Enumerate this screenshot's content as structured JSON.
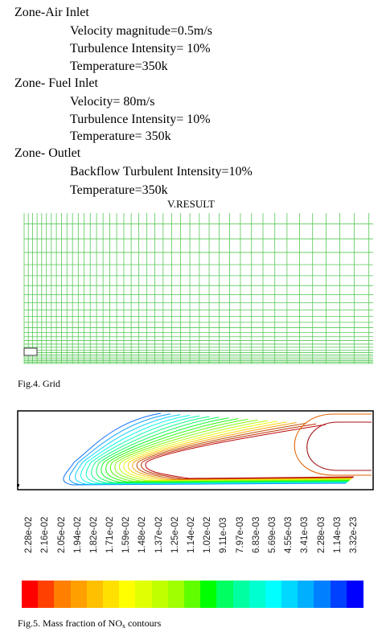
{
  "boundary_conditions": [
    {
      "zone": "Zone-Air Inlet",
      "params": [
        "Velocity magnitude=0.5m/s",
        "Turbulence Intensity= 10%",
        "Temperature=350k"
      ]
    },
    {
      "zone": "Zone- Fuel Inlet",
      "params": [
        "Velocity= 80m/s",
        "Turbulence Intensity= 10%",
        "Temperature= 350k"
      ]
    },
    {
      "zone": "Zone- Outlet",
      "params": [
        "Backflow Turbulent Intensity=10%",
        "Temperature=350k"
      ]
    }
  ],
  "section_title": "V.RESULT",
  "fig4_caption": "Fig.4. Grid",
  "fig5_caption_prefix": "Fig.5. Mass fraction of NO",
  "fig5_caption_sub": "x",
  "fig5_caption_suffix": " contours",
  "colorbar": {
    "labels": [
      "2.28e-02",
      "2.16e-02",
      "2.05e-02",
      "1.94e-02",
      "1.82e-02",
      "1.71e-02",
      "1.59e-02",
      "1.48e-02",
      "1.37e-02",
      "1.25e-02",
      "1.14e-02",
      "1.02e-02",
      "9.11e-03",
      "7.97e-03",
      "6.83e-03",
      "5.69e-03",
      "4.55e-03",
      "3.41e-03",
      "2.28e-03",
      "1.14e-03",
      "3.32e-23"
    ],
    "colors": [
      "#ff0000",
      "#ff4000",
      "#ff8000",
      "#ffa000",
      "#ffc000",
      "#ffe000",
      "#ffff00",
      "#e0ff00",
      "#c0ff00",
      "#a0ff00",
      "#60ff00",
      "#00ff00",
      "#00ff60",
      "#00ffa0",
      "#00ffd0",
      "#00ffff",
      "#00d8ff",
      "#00b0ff",
      "#0080ff",
      "#0040ff",
      "#0000ff"
    ]
  }
}
